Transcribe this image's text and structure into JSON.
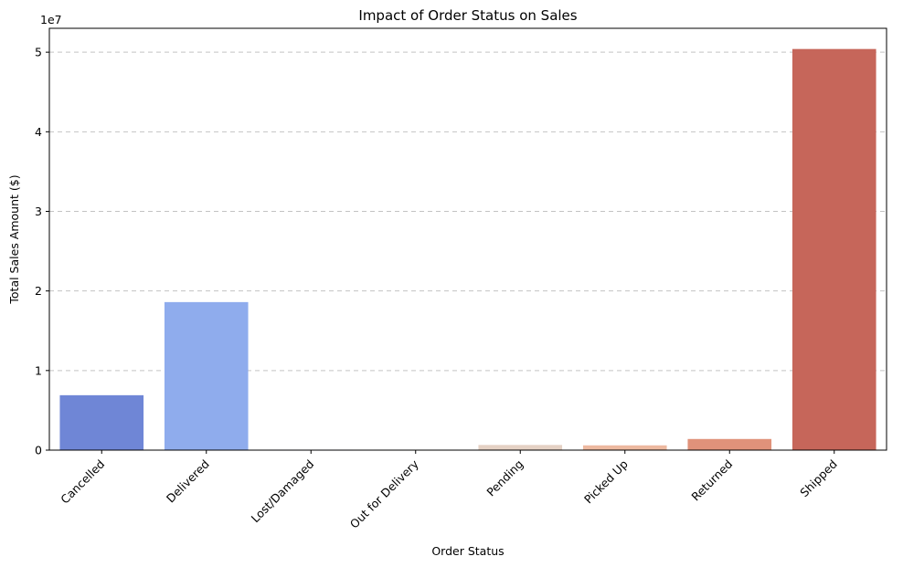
{
  "chart_data": {
    "type": "bar",
    "title": "Impact of Order Status on Sales",
    "xlabel": "Order Status",
    "ylabel": "Total Sales Amount ($)",
    "y_offset_label": "1e7",
    "categories": [
      "Cancelled",
      "Delivered",
      "Lost/Damaged",
      "Out for Delivery",
      "Pending",
      "Picked Up",
      "Returned",
      "Shipped"
    ],
    "values": [
      6900000,
      18600000,
      60000,
      60000,
      650000,
      600000,
      1400000,
      50400000
    ],
    "colors": [
      "#6f86d6",
      "#8faced",
      "#c4d4ef",
      "#e2dad5",
      "#e5d1c4",
      "#edb9a0",
      "#e0927a",
      "#c6665a"
    ],
    "ylim": [
      0,
      53000000
    ],
    "yticks": [
      0,
      10000000,
      20000000,
      30000000,
      40000000,
      50000000
    ],
    "ytick_labels": [
      "0",
      "1",
      "2",
      "3",
      "4",
      "5"
    ],
    "grid": "horizontal-dashed",
    "legend": "none",
    "xtick_rotation": 45
  }
}
